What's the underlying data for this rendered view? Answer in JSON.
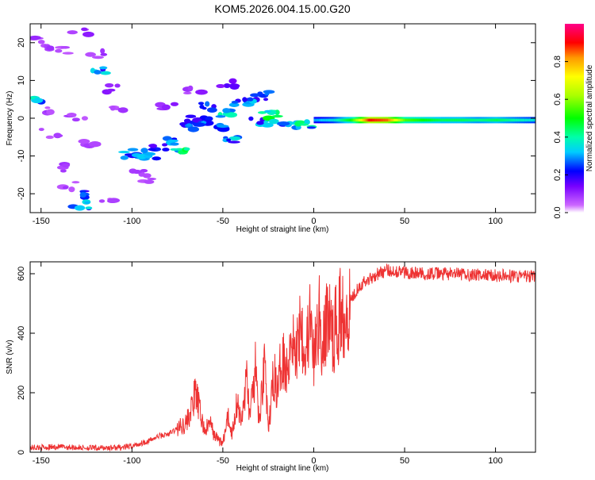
{
  "chart_data": [
    {
      "type": "heatmap",
      "title": "KOM5.2026.004.15.00.G20",
      "xlabel": "Height of straight line (km)",
      "ylabel": "Frequency (Hz)",
      "xlim": [
        -156,
        122
      ],
      "ylim": [
        -25,
        25
      ],
      "x_ticks": [
        -150,
        -100,
        -50,
        0,
        50,
        100
      ],
      "y_ticks": [
        -20,
        -10,
        0,
        10,
        20
      ],
      "colorbar": {
        "label": "Normalized spectral amplitude",
        "range": [
          0,
          1
        ],
        "ticks": [
          0.0,
          0.2,
          0.4,
          0.6,
          0.8
        ]
      },
      "blobs": [
        {
          "x": -154,
          "y": 5,
          "a": 0.35
        },
        {
          "x": -152,
          "y": 21,
          "a": 0.1
        },
        {
          "x": -145,
          "y": 19,
          "a": 0.08
        },
        {
          "x": -138,
          "y": 18,
          "a": 0.08
        },
        {
          "x": -128,
          "y": 23,
          "a": 0.1
        },
        {
          "x": -120,
          "y": 17,
          "a": 0.1
        },
        {
          "x": -118,
          "y": 13,
          "a": 0.3
        },
        {
          "x": -112,
          "y": 8,
          "a": 0.1
        },
        {
          "x": -108,
          "y": 3,
          "a": 0.08
        },
        {
          "x": -142,
          "y": 2,
          "a": 0.08
        },
        {
          "x": -130,
          "y": 0,
          "a": 0.08
        },
        {
          "x": -145,
          "y": -4,
          "a": 0.08
        },
        {
          "x": -125,
          "y": -7,
          "a": 0.08
        },
        {
          "x": -140,
          "y": -13,
          "a": 0.08
        },
        {
          "x": -135,
          "y": -18,
          "a": 0.08
        },
        {
          "x": -128,
          "y": -20,
          "a": 0.25
        },
        {
          "x": -128,
          "y": -23,
          "a": 0.3
        },
        {
          "x": -112,
          "y": -22,
          "a": 0.08
        },
        {
          "x": -100,
          "y": -10,
          "a": 0.3
        },
        {
          "x": -95,
          "y": -9,
          "a": 0.28
        },
        {
          "x": -90,
          "y": -10,
          "a": 0.3
        },
        {
          "x": -85,
          "y": -8,
          "a": 0.25
        },
        {
          "x": -80,
          "y": -6,
          "a": 0.28
        },
        {
          "x": -74,
          "y": -8,
          "a": 0.4
        },
        {
          "x": -70,
          "y": -2,
          "a": 0.3
        },
        {
          "x": -65,
          "y": 0,
          "a": 0.28
        },
        {
          "x": -60,
          "y": -1,
          "a": 0.3
        },
        {
          "x": -58,
          "y": 3,
          "a": 0.25
        },
        {
          "x": -52,
          "y": -2,
          "a": 0.3
        },
        {
          "x": -47,
          "y": 1,
          "a": 0.35
        },
        {
          "x": -45,
          "y": -6,
          "a": 0.3
        },
        {
          "x": -40,
          "y": 4,
          "a": 0.3
        },
        {
          "x": -35,
          "y": 5,
          "a": 0.3
        },
        {
          "x": -30,
          "y": -1,
          "a": 0.3
        },
        {
          "x": -28,
          "y": 6,
          "a": 0.25
        },
        {
          "x": -24,
          "y": 1,
          "a": 0.45
        },
        {
          "x": -18,
          "y": -1,
          "a": 0.3
        },
        {
          "x": -12,
          "y": -2,
          "a": 0.3
        },
        {
          "x": -5,
          "y": -2,
          "a": 0.4
        },
        {
          "x": -48,
          "y": 9,
          "a": 0.15
        },
        {
          "x": -65,
          "y": 7,
          "a": 0.1
        },
        {
          "x": -80,
          "y": 3,
          "a": 0.1
        },
        {
          "x": -95,
          "y": -14,
          "a": 0.1
        },
        {
          "x": -90,
          "y": -16,
          "a": 0.08
        }
      ],
      "band": {
        "y": -0.5,
        "x": [
          0,
          10,
          20,
          30,
          40,
          50,
          60,
          70,
          80,
          90,
          100,
          110,
          122
        ],
        "a": [
          0.3,
          0.35,
          0.5,
          0.9,
          0.85,
          0.55,
          0.5,
          0.45,
          0.45,
          0.42,
          0.45,
          0.4,
          0.35
        ]
      }
    },
    {
      "type": "line",
      "xlabel": "Height of straight line (km)",
      "ylabel": "SNR (v/v)",
      "xlim": [
        -156,
        122
      ],
      "ylim": [
        0,
        640
      ],
      "x_ticks": [
        -150,
        -100,
        -50,
        0,
        50,
        100
      ],
      "y_ticks": [
        0,
        200,
        400,
        600
      ],
      "color": "#ee3333",
      "x": [
        -156,
        -140,
        -120,
        -105,
        -100,
        -95,
        -90,
        -85,
        -80,
        -75,
        -70,
        -67,
        -65,
        -62,
        -60,
        -57,
        -55,
        -52,
        -50,
        -47,
        -45,
        -42,
        -40,
        -37,
        -35,
        -32,
        -30,
        -27,
        -25,
        -22,
        -20,
        -17,
        -15,
        -12,
        -10,
        -7,
        -5,
        -2,
        0,
        3,
        5,
        8,
        10,
        15,
        20,
        25,
        30,
        35,
        40,
        45,
        50,
        60,
        70,
        80,
        90,
        100,
        110,
        122
      ],
      "y": [
        15,
        18,
        14,
        16,
        20,
        30,
        40,
        55,
        60,
        80,
        100,
        150,
        200,
        120,
        70,
        100,
        60,
        40,
        30,
        120,
        60,
        180,
        90,
        250,
        120,
        280,
        90,
        330,
        60,
        270,
        200,
        350,
        260,
        420,
        300,
        480,
        320,
        440,
        300,
        460,
        330,
        490,
        380,
        470,
        510,
        560,
        580,
        600,
        610,
        610,
        605,
        600,
        600,
        598,
        596,
        594,
        592,
        590
      ]
    }
  ]
}
